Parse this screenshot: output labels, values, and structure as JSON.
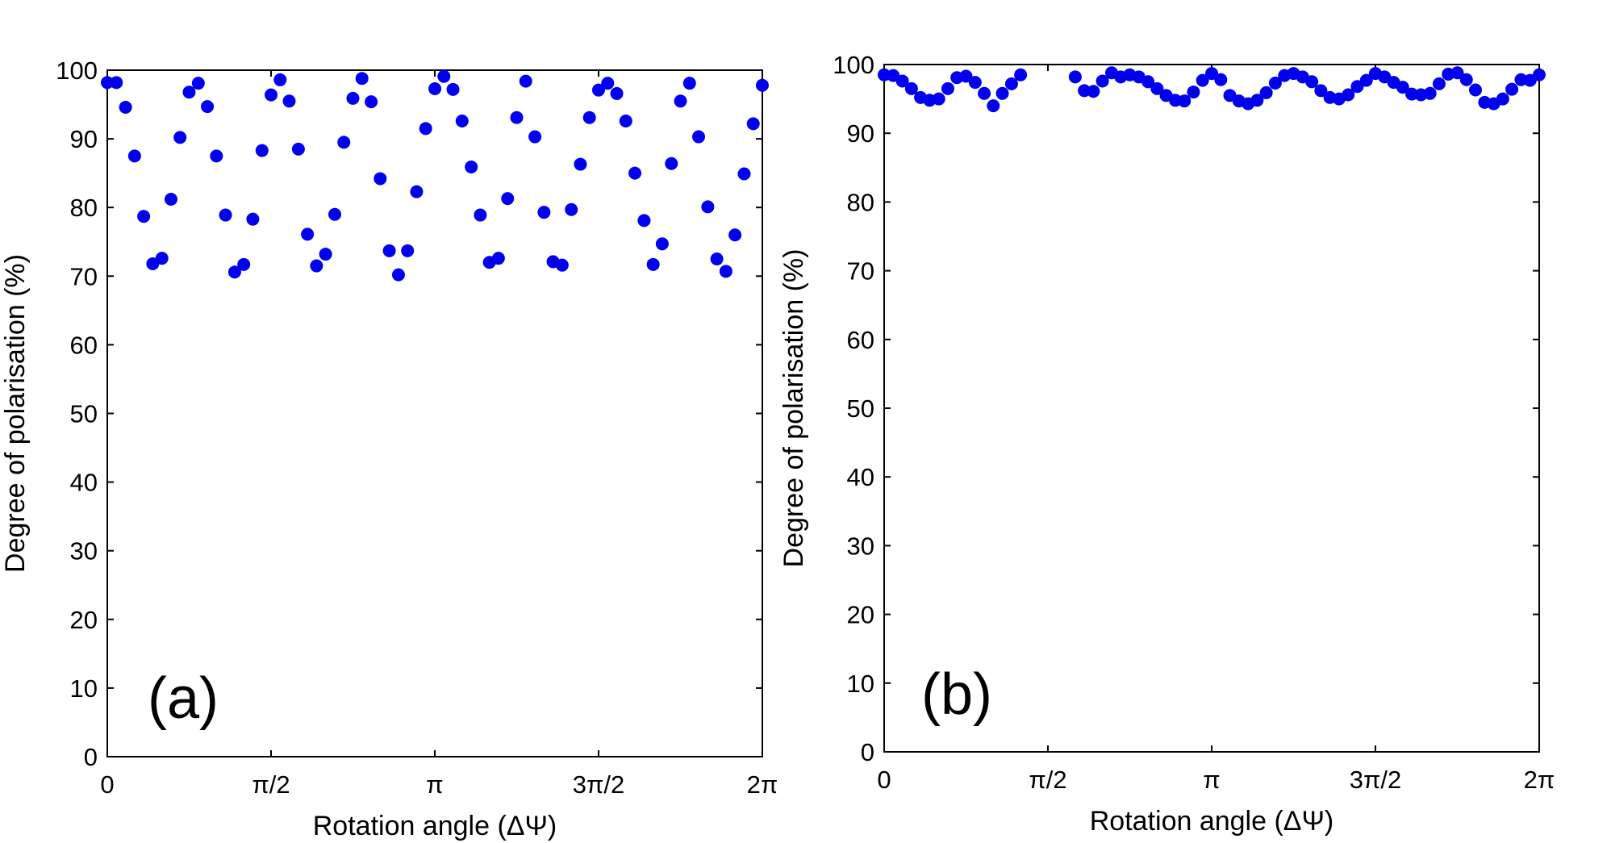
{
  "chart_data": [
    {
      "type": "scatter",
      "panel_label": "(a)",
      "xlabel": "Rotation angle (ΔΨ)",
      "ylabel": "Degree of polarisation (%)",
      "xlim": [
        0,
        6.2832
      ],
      "ylim": [
        0,
        100
      ],
      "xticks": [
        {
          "value": 0,
          "label": "0"
        },
        {
          "value": 1.5708,
          "label": "π/2"
        },
        {
          "value": 3.1416,
          "label": "π"
        },
        {
          "value": 4.7124,
          "label": "3π/2"
        },
        {
          "value": 6.2832,
          "label": "2π"
        }
      ],
      "yticks": [
        0,
        10,
        20,
        30,
        40,
        50,
        60,
        70,
        80,
        90,
        100
      ],
      "series": [
        {
          "name": "(a)",
          "color": "#0000ee",
          "x": [
            0.0,
            0.087,
            0.175,
            0.262,
            0.349,
            0.436,
            0.524,
            0.611,
            0.698,
            0.785,
            0.873,
            0.96,
            1.047,
            1.134,
            1.222,
            1.309,
            1.396,
            1.484,
            1.571,
            1.658,
            1.745,
            1.833,
            1.92,
            2.007,
            2.094,
            2.182,
            2.269,
            2.356,
            2.443,
            2.531,
            2.618,
            2.705,
            2.793,
            2.88,
            2.967,
            3.054,
            3.142,
            3.229,
            3.316,
            3.403,
            3.491,
            3.578,
            3.665,
            3.752,
            3.84,
            3.927,
            4.014,
            4.102,
            4.189,
            4.276,
            4.363,
            4.451,
            4.538,
            4.625,
            4.712,
            4.8,
            4.887,
            4.974,
            5.061,
            5.149,
            5.236,
            5.323,
            5.411,
            5.498,
            5.585,
            5.672,
            5.76,
            5.847,
            5.934,
            6.021,
            6.109,
            6.196,
            6.283
          ],
          "y": [
            98.2,
            98.2,
            94.6,
            87.5,
            78.7,
            71.8,
            72.6,
            81.2,
            90.2,
            96.8,
            98.1,
            94.7,
            87.5,
            78.9,
            70.6,
            71.7,
            78.3,
            88.3,
            96.4,
            98.6,
            95.5,
            88.5,
            76.1,
            71.5,
            73.2,
            79.0,
            89.5,
            95.9,
            98.8,
            95.4,
            84.2,
            73.7,
            70.2,
            73.7,
            82.3,
            91.5,
            97.3,
            99.1,
            97.2,
            92.6,
            85.9,
            78.9,
            72.0,
            72.6,
            81.3,
            93.1,
            98.4,
            90.3,
            79.3,
            72.1,
            71.6,
            79.7,
            86.3,
            93.1,
            97.1,
            98.1,
            96.6,
            92.6,
            85.0,
            78.1,
            71.7,
            74.7,
            86.4,
            95.5,
            98.1,
            90.3,
            80.1,
            72.5,
            70.7,
            76.0,
            84.9,
            92.2,
            97.8
          ]
        }
      ]
    },
    {
      "type": "scatter",
      "panel_label": "(b)",
      "xlabel": "Rotation angle (ΔΨ)",
      "ylabel": "Degree of polarisation (%)",
      "xlim": [
        0,
        6.2832
      ],
      "ylim": [
        0,
        100
      ],
      "xticks": [
        {
          "value": 0,
          "label": "0"
        },
        {
          "value": 1.5708,
          "label": "π/2"
        },
        {
          "value": 3.1416,
          "label": "π"
        },
        {
          "value": 4.7124,
          "label": "3π/2"
        },
        {
          "value": 6.2832,
          "label": "2π"
        }
      ],
      "yticks": [
        0,
        10,
        20,
        30,
        40,
        50,
        60,
        70,
        80,
        90,
        100
      ],
      "series": [
        {
          "name": "(b)",
          "color": "#0000ee",
          "x": [
            0.0,
            0.087,
            0.175,
            0.262,
            0.349,
            0.436,
            0.524,
            0.611,
            0.698,
            0.785,
            0.873,
            0.96,
            1.047,
            1.134,
            1.222,
            1.309,
            1.833,
            1.92,
            2.007,
            2.094,
            2.182,
            2.269,
            2.356,
            2.443,
            2.531,
            2.618,
            2.705,
            2.793,
            2.88,
            2.967,
            3.054,
            3.142,
            3.229,
            3.316,
            3.403,
            3.491,
            3.578,
            3.665,
            3.752,
            3.84,
            3.927,
            4.014,
            4.102,
            4.189,
            4.276,
            4.363,
            4.451,
            4.538,
            4.625,
            4.712,
            4.8,
            4.887,
            4.974,
            5.061,
            5.149,
            5.236,
            5.323,
            5.411,
            5.498,
            5.585,
            5.672,
            5.76,
            5.847,
            5.934,
            6.021,
            6.109,
            6.196,
            6.283
          ],
          "y": [
            98.5,
            98.4,
            97.6,
            96.5,
            95.2,
            94.8,
            95.0,
            96.5,
            98.1,
            98.3,
            97.4,
            95.8,
            94.0,
            95.8,
            97.2,
            98.5,
            98.2,
            96.2,
            96.1,
            97.6,
            98.8,
            98.2,
            98.5,
            98.2,
            97.5,
            96.5,
            95.5,
            94.8,
            94.7,
            96.0,
            97.7,
            98.7,
            97.8,
            95.5,
            94.7,
            94.3,
            94.8,
            95.9,
            97.3,
            98.4,
            98.7,
            98.2,
            97.5,
            96.2,
            95.2,
            95.0,
            95.6,
            96.8,
            97.7,
            98.7,
            98.2,
            97.4,
            96.7,
            95.7,
            95.6,
            95.8,
            97.2,
            98.6,
            98.8,
            97.8,
            96.3,
            94.5,
            94.3,
            95.0,
            96.4,
            97.8,
            97.7,
            98.5
          ]
        }
      ]
    }
  ]
}
